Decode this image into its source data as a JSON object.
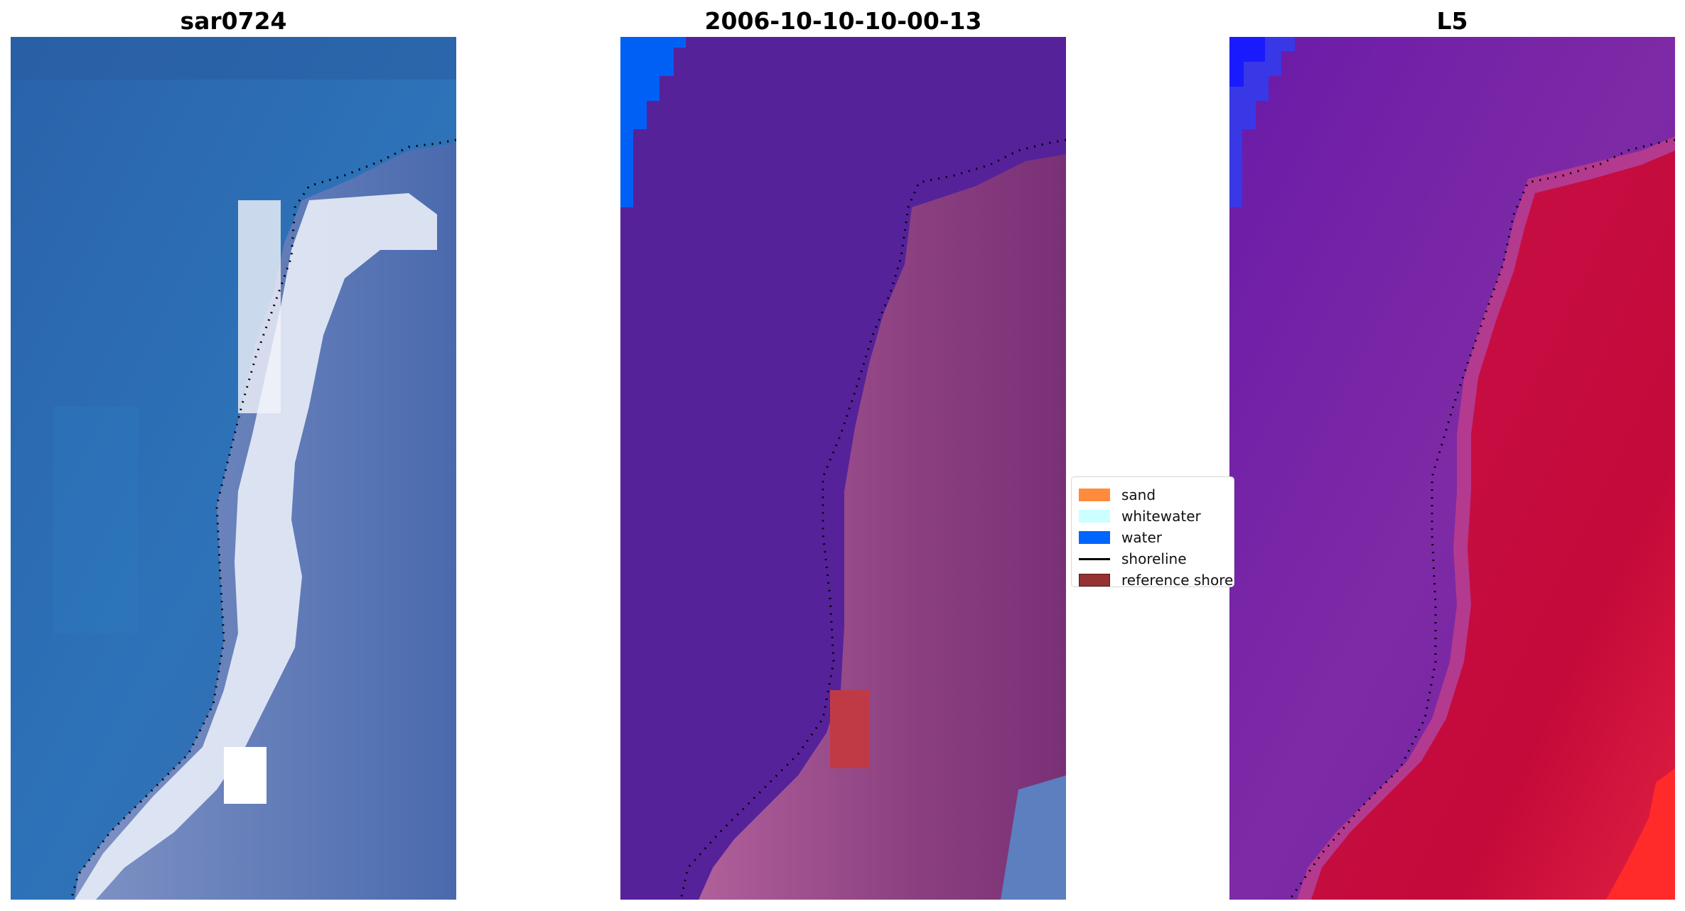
{
  "panels": [
    {
      "title": "sar0724"
    },
    {
      "title": "2006-10-10-10-00-13"
    },
    {
      "title": "L5"
    }
  ],
  "legend": {
    "items": [
      {
        "label": "sand",
        "color": "#ff8c3c"
      },
      {
        "label": "whitewater",
        "color": "#ccffff"
      },
      {
        "label": "water",
        "color": "#0064ff"
      },
      {
        "label": "shoreline",
        "color": "#000000"
      },
      {
        "label": "reference shoreline buffer",
        "color": "#963232"
      }
    ]
  },
  "colors": {
    "sea_rgb": "#2a6db5",
    "surf_rgb": "#dfe6f2",
    "water_class": "#56229a",
    "land_class": "#a0508c",
    "water_mndwi": "#7a22a8",
    "land_mndwi": "#c8103c",
    "water_flag": "#0064ff",
    "buffer": "#c03a46"
  }
}
